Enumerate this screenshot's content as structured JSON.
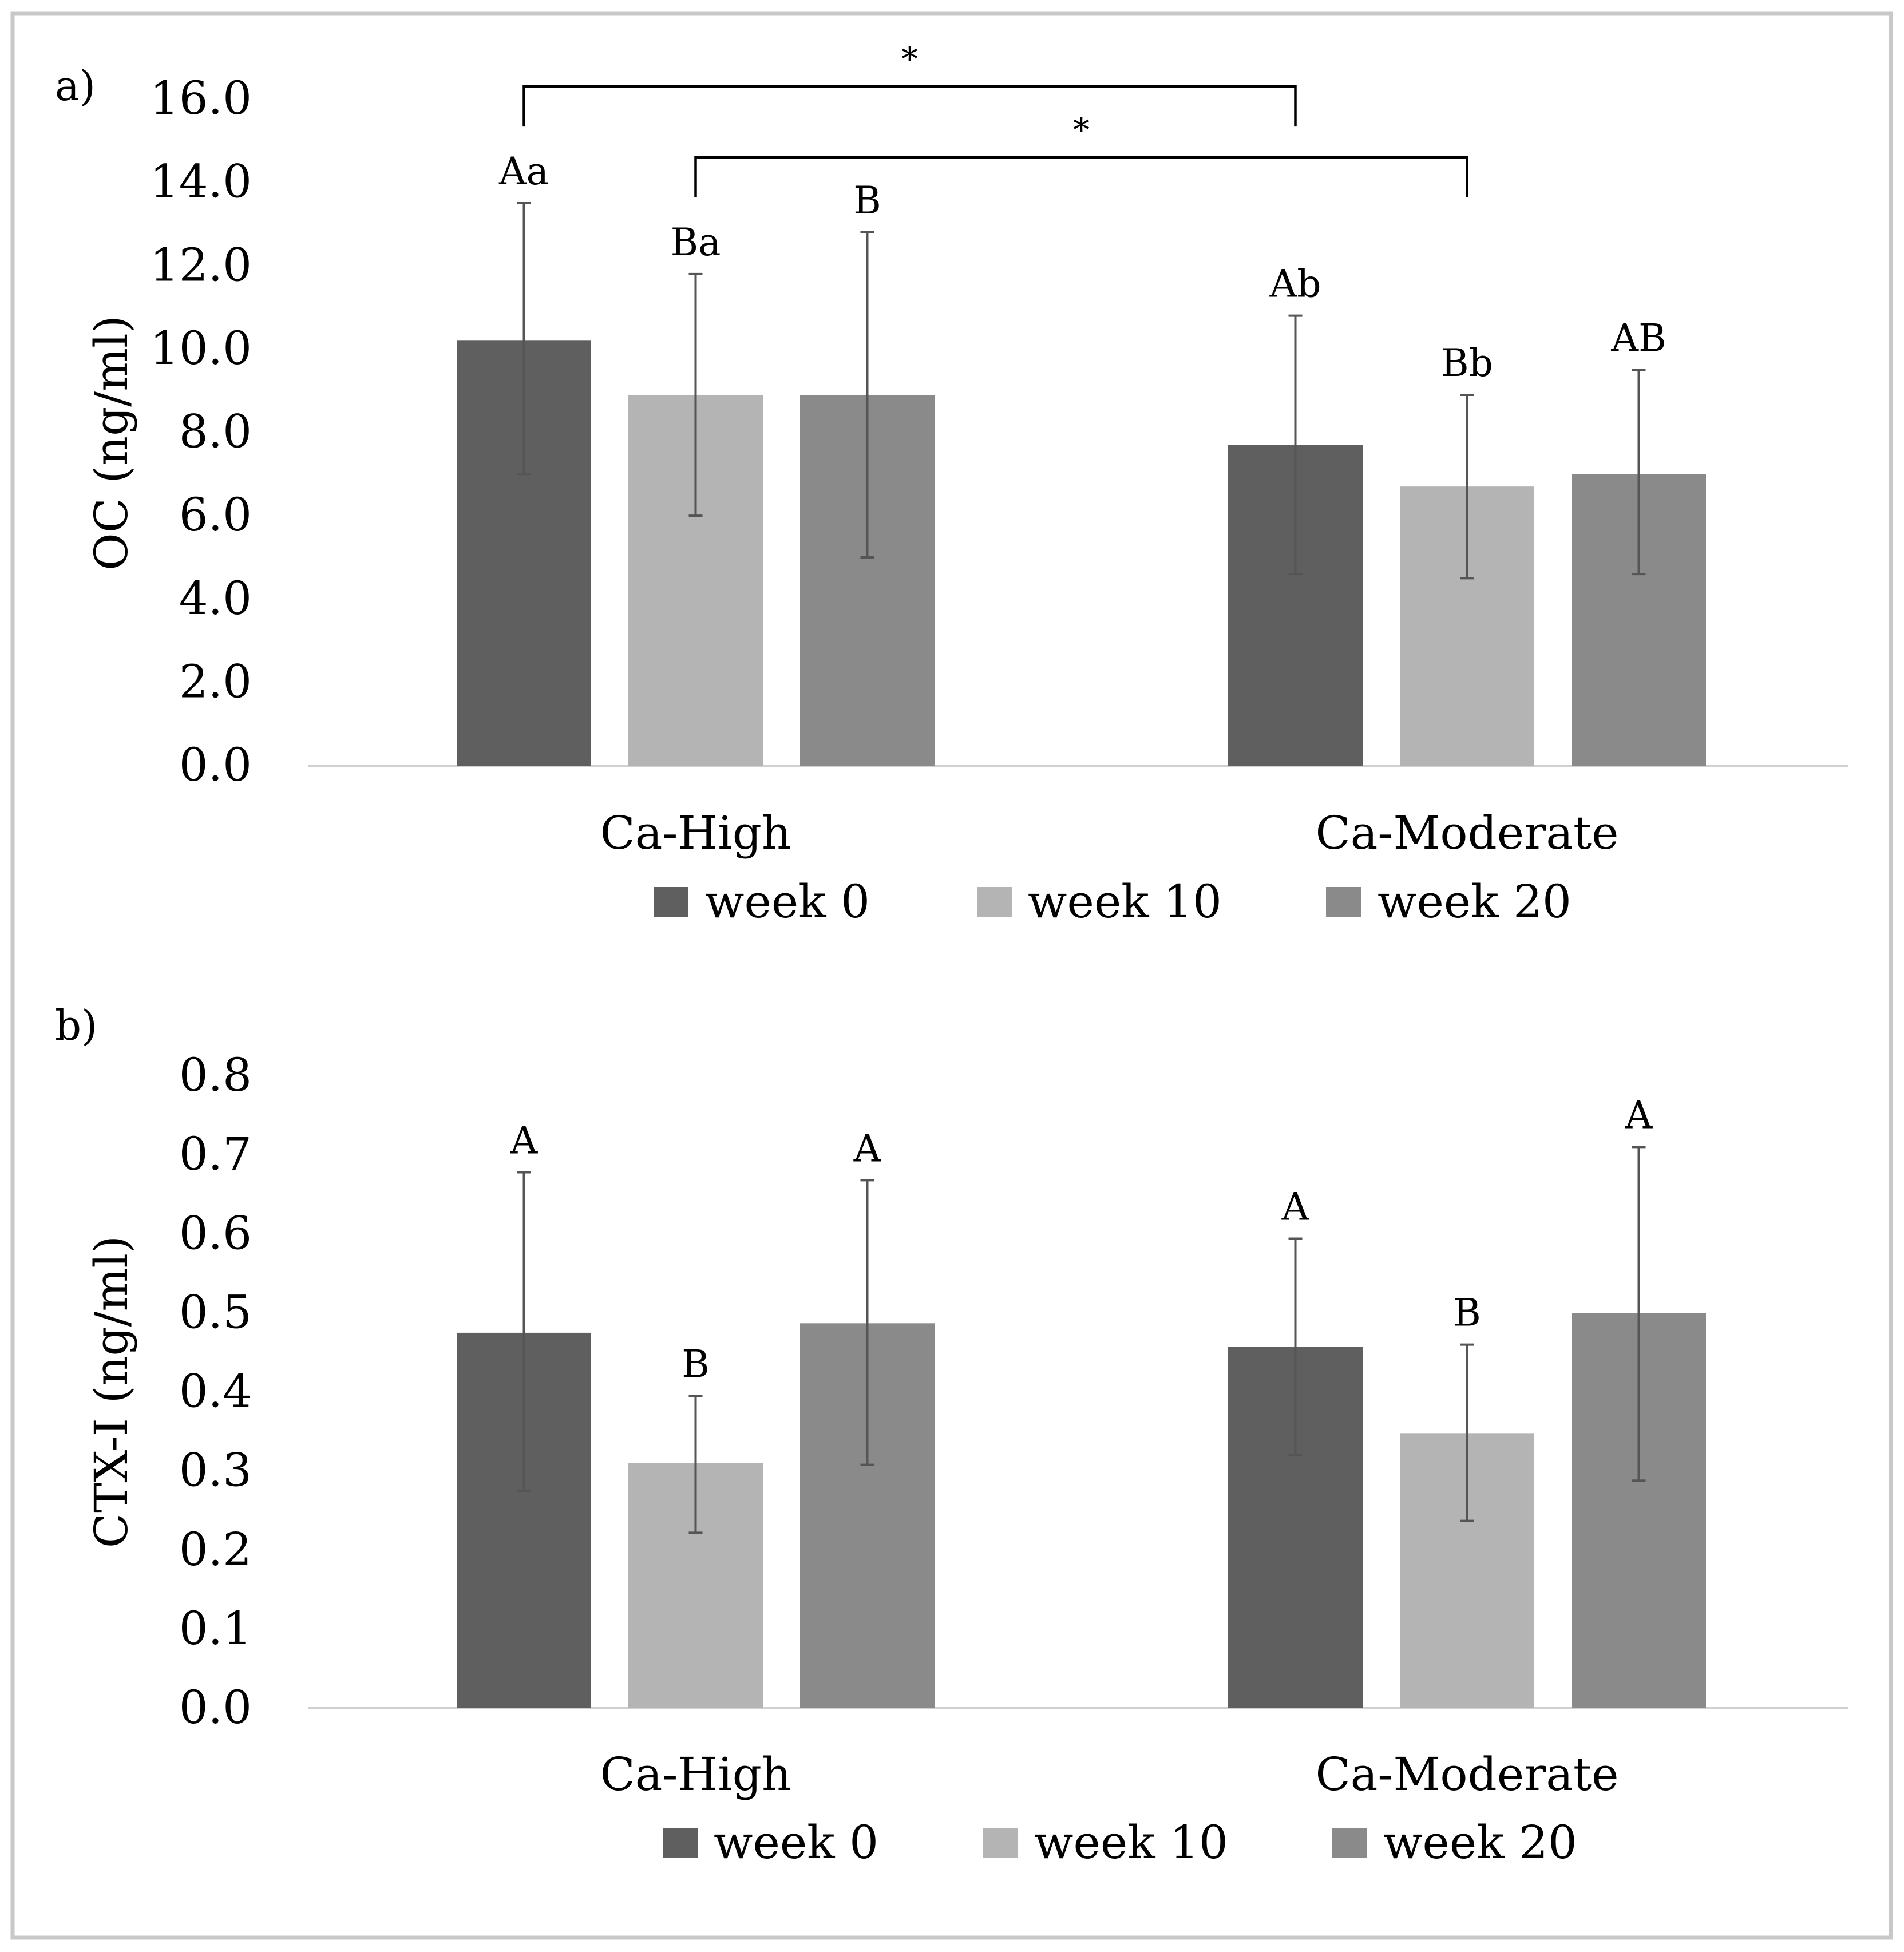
{
  "figure": {
    "frame_color": "#c8c8c8",
    "series_colors": {
      "week 0": "#5f5f5f",
      "week 10": "#b4b4b4",
      "week 20": "#8a8a8a"
    }
  },
  "chart_data": [
    {
      "panel_label": "a)",
      "type": "bar",
      "ylabel": "OC (ng/ml)",
      "xlabel": "",
      "ylim": [
        0,
        16
      ],
      "yticks": [
        "0.0",
        "2.0",
        "4.0",
        "6.0",
        "8.0",
        "10.0",
        "12.0",
        "14.0",
        "16.0"
      ],
      "grid": false,
      "legend_position": "bottom",
      "categories": [
        "Ca-High",
        "Ca-Moderate"
      ],
      "series": [
        {
          "name": "week 0",
          "color": "#5f5f5f",
          "values": [
            10.2,
            7.7
          ],
          "err_low": [
            7.0,
            4.6
          ],
          "err_high": [
            13.5,
            10.8
          ],
          "labels": [
            "Aa",
            "Ab"
          ]
        },
        {
          "name": "week 10",
          "color": "#b4b4b4",
          "values": [
            8.9,
            6.7
          ],
          "err_low": [
            6.0,
            4.5
          ],
          "err_high": [
            11.8,
            8.9
          ],
          "labels": [
            "Ba",
            "Bb"
          ]
        },
        {
          "name": "week 20",
          "color": "#8a8a8a",
          "values": [
            8.9,
            7.0
          ],
          "err_low": [
            5.0,
            4.6
          ],
          "err_high": [
            12.8,
            9.5
          ],
          "labels": [
            "B",
            "AB"
          ]
        }
      ],
      "significance": [
        {
          "from": {
            "category": 0,
            "series": 0
          },
          "to": {
            "category": 1,
            "series": 0
          },
          "label": "*",
          "y": 16.3
        },
        {
          "from": {
            "category": 0,
            "series": 1
          },
          "to": {
            "category": 1,
            "series": 1
          },
          "label": "*",
          "y": 14.6
        }
      ]
    },
    {
      "panel_label": "b)",
      "type": "bar",
      "ylabel": "CTX-I (ng/ml)",
      "xlabel": "",
      "ylim": [
        0,
        0.8
      ],
      "yticks": [
        "0.0",
        "0.1",
        "0.2",
        "0.3",
        "0.4",
        "0.5",
        "0.6",
        "0.7",
        "0.8"
      ],
      "grid": false,
      "legend_position": "bottom",
      "categories": [
        "Ca-High",
        "Ca-Moderate"
      ],
      "series": [
        {
          "name": "week 0",
          "color": "#5f5f5f",
          "values": [
            0.475,
            0.457
          ],
          "err_low": [
            0.275,
            0.32
          ],
          "err_high": [
            0.678,
            0.594
          ],
          "labels": [
            "A",
            "A"
          ]
        },
        {
          "name": "week 10",
          "color": "#b4b4b4",
          "values": [
            0.31,
            0.348
          ],
          "err_low": [
            0.222,
            0.237
          ],
          "err_high": [
            0.395,
            0.46
          ],
          "labels": [
            "B",
            "B"
          ]
        },
        {
          "name": "week 20",
          "color": "#8a8a8a",
          "values": [
            0.487,
            0.5
          ],
          "err_low": [
            0.308,
            0.288
          ],
          "err_high": [
            0.668,
            0.71
          ],
          "labels": [
            "A",
            "A"
          ]
        }
      ],
      "significance": []
    }
  ]
}
